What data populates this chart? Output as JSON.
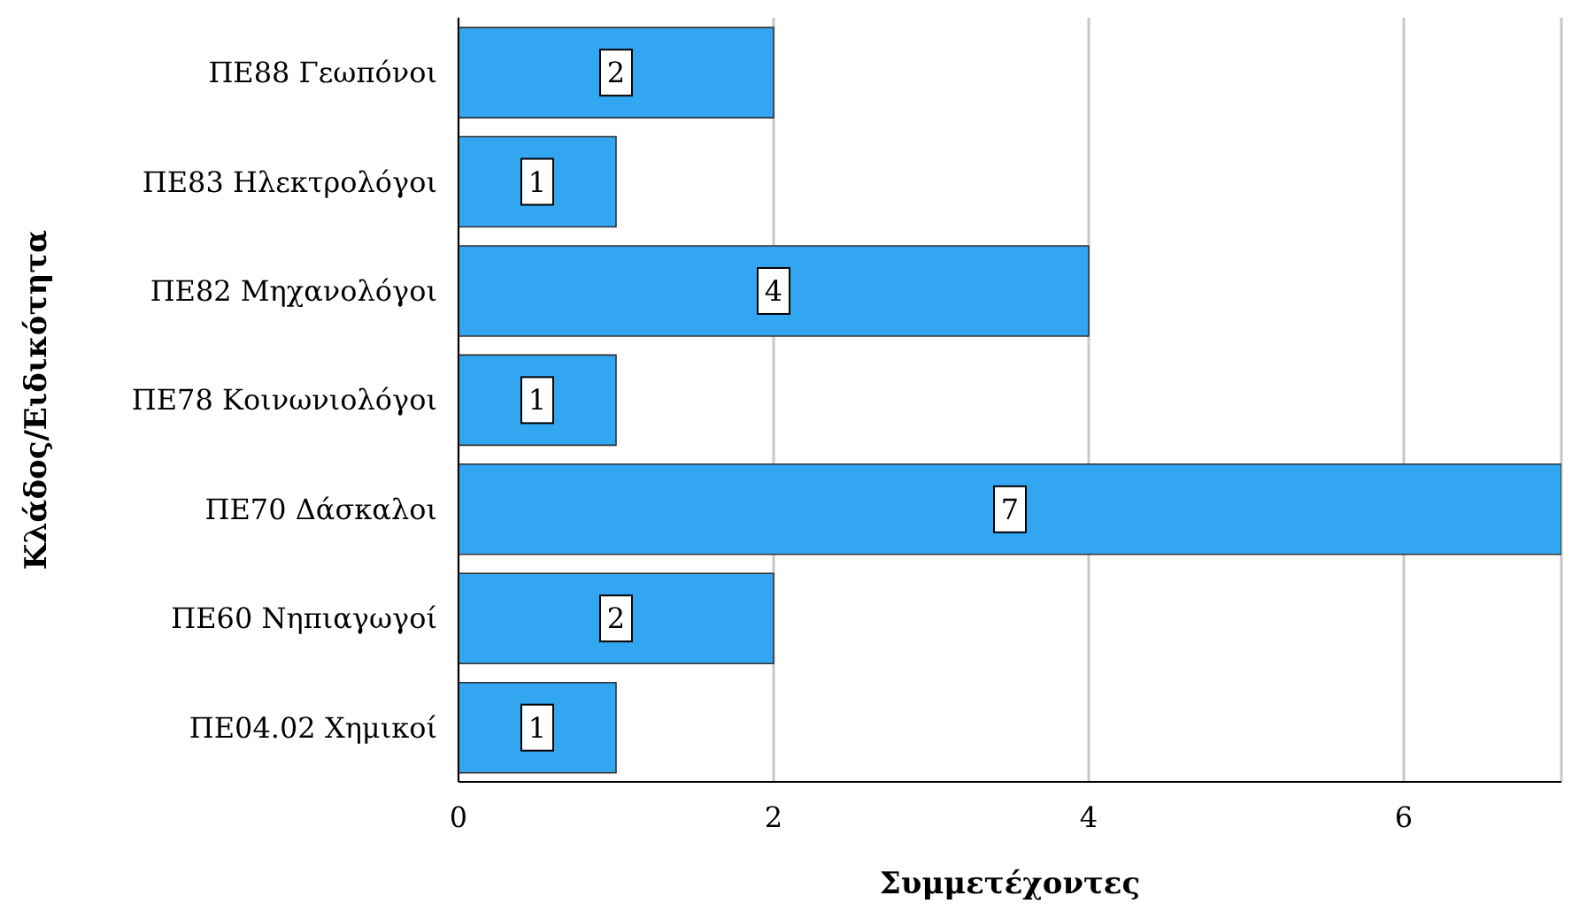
{
  "chart_data": {
    "type": "bar",
    "orientation": "horizontal",
    "xlabel": "Συμμετέχοντες",
    "ylabel": "Κλάδος/Ειδικότητα",
    "categories": [
      "ΠΕ88 Γεωπόνοι",
      "ΠΕ83 Ηλεκτρολόγοι",
      "ΠΕ82 Μηχανολόγοι",
      "ΠΕ78 Κοινωνιολόγοι",
      "ΠΕ70 Δάσκαλοι",
      "ΠΕ60 Νηπιαγωγοί",
      "ΠΕ04.02 Χημικοί"
    ],
    "values": [
      2,
      1,
      4,
      1,
      7,
      2,
      1
    ],
    "color": "#33a6f2",
    "xlim": [
      0,
      7
    ],
    "xticks": [
      0,
      2,
      4,
      6
    ],
    "grid": "x",
    "data_labels": true
  }
}
